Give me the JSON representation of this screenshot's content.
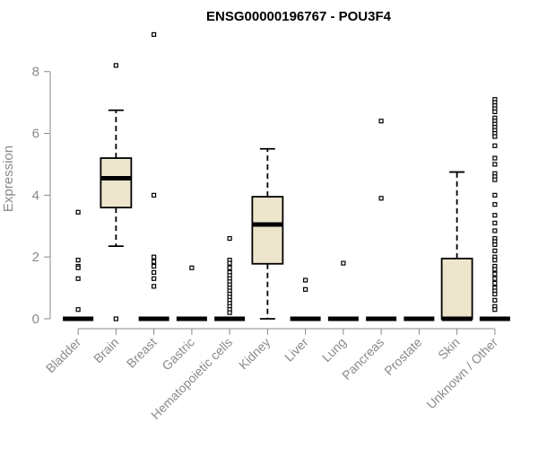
{
  "chart_data": {
    "type": "boxplot",
    "title": "ENSG00000196767 - POU3F4",
    "ylabel": "Expression",
    "xlabel": "",
    "ylim": [
      0,
      9.3
    ],
    "yticks": [
      0,
      2,
      4,
      6,
      8
    ],
    "box_fill": "#ede6cc",
    "categories": [
      "Bladder",
      "Brain",
      "Breast",
      "Gastric",
      "Hematopoietic cells",
      "Kidney",
      "Liver",
      "Lung",
      "Pancreas",
      "Prostate",
      "Skin",
      "Unknown / Other"
    ],
    "boxes": [
      {
        "category": "Bladder",
        "q1": 0,
        "median": 0,
        "q3": 0,
        "whisker_low": 0,
        "whisker_high": 0,
        "outliers": [
          3.45,
          1.9,
          1.7,
          1.65,
          1.3,
          0.3
        ]
      },
      {
        "category": "Brain",
        "q1": 3.6,
        "median": 4.55,
        "q3": 5.2,
        "whisker_low": 2.35,
        "whisker_high": 6.75,
        "outliers": [
          8.2,
          0
        ]
      },
      {
        "category": "Breast",
        "q1": 0,
        "median": 0,
        "q3": 0,
        "whisker_low": 0,
        "whisker_high": 0,
        "outliers": [
          9.2,
          4.0,
          2.0,
          1.85,
          1.7,
          1.5,
          1.3,
          1.05
        ]
      },
      {
        "category": "Gastric",
        "q1": 0,
        "median": 0,
        "q3": 0,
        "whisker_low": 0,
        "whisker_high": 0,
        "outliers": [
          1.65
        ]
      },
      {
        "category": "Hematopoietic cells",
        "q1": 0,
        "median": 0,
        "q3": 0,
        "whisker_low": 0,
        "whisker_high": 0,
        "outliers": [
          2.6,
          1.9,
          1.8,
          1.65,
          1.5,
          1.4,
          1.3,
          1.2,
          1.1,
          1.0,
          0.9,
          0.8,
          0.7,
          0.6,
          0.5,
          0.4,
          0.3,
          0.2
        ]
      },
      {
        "category": "Kidney",
        "q1": 1.78,
        "median": 3.05,
        "q3": 3.95,
        "whisker_low": 0,
        "whisker_high": 5.5,
        "outliers": []
      },
      {
        "category": "Liver",
        "q1": 0,
        "median": 0,
        "q3": 0,
        "whisker_low": 0,
        "whisker_high": 0,
        "outliers": [
          1.25,
          0.95
        ]
      },
      {
        "category": "Lung",
        "q1": 0,
        "median": 0,
        "q3": 0,
        "whisker_low": 0,
        "whisker_high": 0,
        "outliers": [
          1.8
        ]
      },
      {
        "category": "Pancreas",
        "q1": 0,
        "median": 0,
        "q3": 0,
        "whisker_low": 0,
        "whisker_high": 0,
        "outliers": [
          6.4,
          3.9
        ]
      },
      {
        "category": "Prostate",
        "q1": 0,
        "median": 0,
        "q3": 0,
        "whisker_low": 0,
        "whisker_high": 0,
        "outliers": []
      },
      {
        "category": "Skin",
        "q1": 0,
        "median": 0,
        "q3": 1.95,
        "whisker_low": 0,
        "whisker_high": 4.75,
        "outliers": []
      },
      {
        "category": "Unknown / Other",
        "q1": 0,
        "median": 0,
        "q3": 0,
        "whisker_low": 0,
        "whisker_high": 0,
        "outliers": [
          7.1,
          7.0,
          6.9,
          6.8,
          6.7,
          6.5,
          6.4,
          6.3,
          6.2,
          6.1,
          6.0,
          5.9,
          5.6,
          5.2,
          5.0,
          4.7,
          4.6,
          4.5,
          4.0,
          3.7,
          3.35,
          3.1,
          2.85,
          2.6,
          2.5,
          2.4,
          2.2,
          2.0,
          1.9,
          1.7,
          1.6,
          1.45,
          1.3,
          1.15,
          1.0,
          0.9,
          0.8,
          0.6,
          0.4,
          0.3
        ]
      }
    ]
  }
}
